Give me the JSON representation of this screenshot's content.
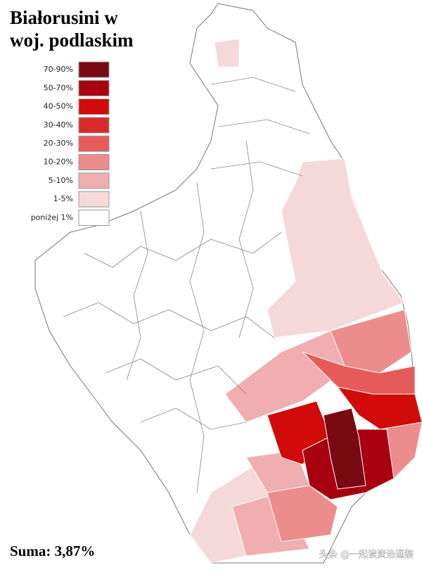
{
  "title_lines": [
    "Białorusini w",
    "woj. podlaskim"
  ],
  "legend": [
    {
      "label": "70-90%",
      "color": "#7a0a12"
    },
    {
      "label": "50-70%",
      "color": "#a8000f"
    },
    {
      "label": "40-50%",
      "color": "#d10a0a"
    },
    {
      "label": "30-40%",
      "color": "#d92a2a"
    },
    {
      "label": "20-30%",
      "color": "#e65a5a"
    },
    {
      "label": "10-20%",
      "color": "#ec8c8c"
    },
    {
      "label": "5-10%",
      "color": "#f0aeb0"
    },
    {
      "label": "1-5%",
      "color": "#f5d9da"
    },
    {
      "label": "poniżej 1%",
      "color": "#ffffff"
    }
  ],
  "summary": "Suma: 3,87%",
  "watermark": "头条 @一起读资治通鉴"
}
